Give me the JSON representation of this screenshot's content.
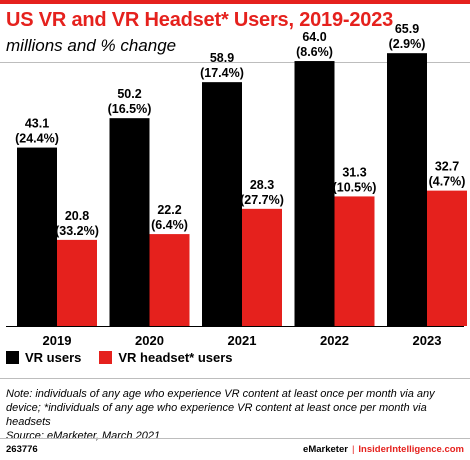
{
  "header": {
    "title": "US VR and VR Headset* Users, 2019-2023",
    "subtitle": "millions and % change"
  },
  "colors": {
    "accent": "#e5211d",
    "vr_users": "#000000",
    "vr_headset_users": "#e5211d"
  },
  "chart_data": {
    "type": "bar",
    "categories": [
      "2019",
      "2020",
      "2021",
      "2022",
      "2023"
    ],
    "series": [
      {
        "name": "VR users",
        "values": [
          43.1,
          50.2,
          58.9,
          64.0,
          65.9
        ],
        "labels": [
          "43.1",
          "50.2",
          "58.9",
          "64.0",
          "65.9"
        ],
        "pct_change": [
          "(24.4%)",
          "(16.5%)",
          "(17.4%)",
          "(8.6%)",
          "(2.9%)"
        ]
      },
      {
        "name": "VR headset* users",
        "values": [
          20.8,
          22.2,
          28.3,
          31.3,
          32.7
        ],
        "labels": [
          "20.8",
          "22.2",
          "28.3",
          "31.3",
          "32.7"
        ],
        "pct_change": [
          "(33.2%)",
          "(6.4%)",
          "(27.7%)",
          "(10.5%)",
          "(4.7%)"
        ]
      }
    ],
    "ylim": [
      0,
      70
    ],
    "grid": false,
    "legend_position": "bottom-left"
  },
  "legend": {
    "vr_users": "VR users",
    "vr_headset_users": "VR headset* users"
  },
  "notes": {
    "note": "Note: individuals of any age who experience VR content at least once per month via any device; *individuals of any age who experience VR content at least once per month via headsets",
    "source": "Source: eMarketer, March 2021"
  },
  "footer": {
    "chart_id": "263776",
    "brand": "eMarketer",
    "separator": "|",
    "site": "InsiderIntelligence.com"
  }
}
